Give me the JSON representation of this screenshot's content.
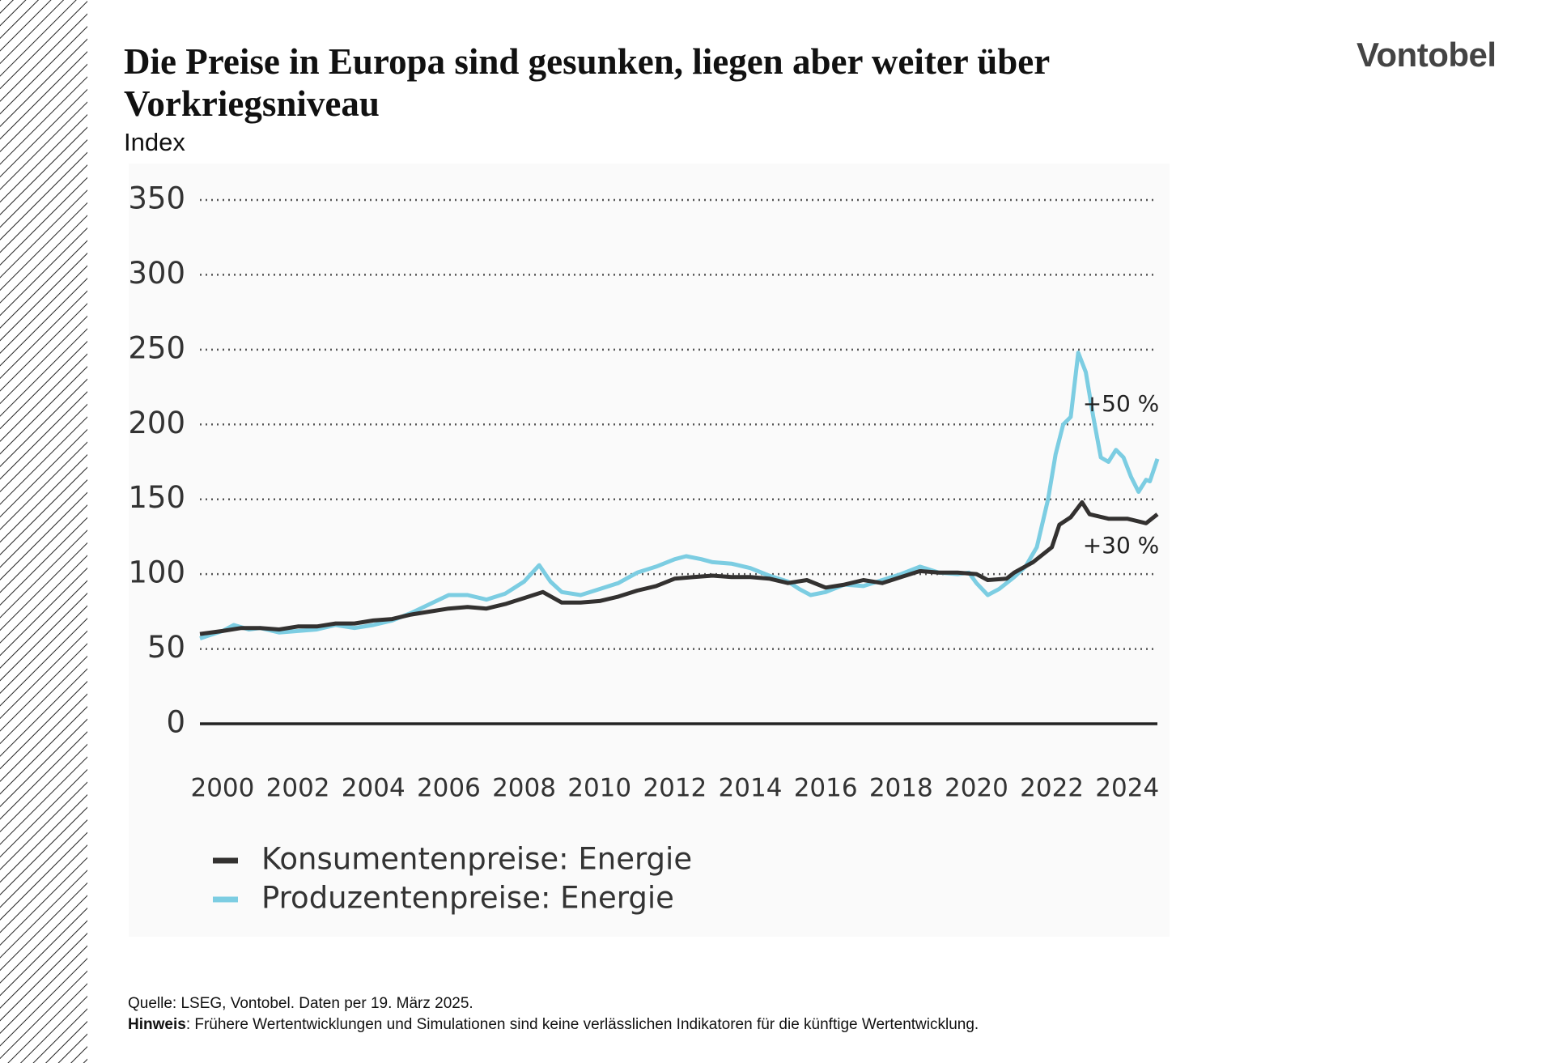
{
  "header": {
    "title": "Die Preise in Europa sind gesunken, liegen aber weiter über Vorkriegsniveau",
    "subtitle": "Index",
    "logo": "Vontobel"
  },
  "chart_data": {
    "type": "line",
    "xlim": [
      1999.4,
      2024.8
    ],
    "xticks": [
      2000,
      2002,
      2004,
      2006,
      2008,
      2010,
      2012,
      2014,
      2016,
      2018,
      2020,
      2022,
      2024
    ],
    "ylim": [
      0,
      350
    ],
    "yticks": [
      0,
      50,
      100,
      150,
      200,
      250,
      300,
      350
    ],
    "grid": true,
    "legend": "bottom-left",
    "annotations": [
      "+50 %",
      "+30 %"
    ],
    "series": [
      {
        "name": "Konsumentenpreise: Energie",
        "color": "#333130",
        "x": [
          1999.4,
          2000,
          2000.5,
          2001,
          2001.5,
          2002,
          2002.5,
          2003,
          2003.5,
          2004,
          2004.5,
          2005,
          2005.5,
          2006,
          2006.5,
          2007,
          2007.5,
          2008,
          2008.5,
          2009,
          2009.5,
          2010,
          2010.5,
          2011,
          2011.5,
          2012,
          2012.5,
          2013,
          2013.5,
          2014,
          2014.5,
          2015,
          2015.5,
          2016,
          2016.5,
          2017,
          2017.5,
          2018,
          2018.5,
          2019,
          2019.5,
          2020,
          2020.3,
          2020.8,
          2021,
          2021.5,
          2022,
          2022.2,
          2022.5,
          2022.8,
          2023,
          2023.5,
          2024,
          2024.5,
          2024.8
        ],
        "values": [
          60,
          62,
          64,
          64,
          63,
          65,
          65,
          67,
          67,
          69,
          70,
          73,
          75,
          77,
          78,
          77,
          80,
          84,
          88,
          81,
          81,
          82,
          85,
          89,
          92,
          97,
          98,
          99,
          98,
          98,
          97,
          94,
          96,
          91,
          93,
          96,
          94,
          98,
          102,
          101,
          101,
          100,
          96,
          97,
          101,
          108,
          118,
          133,
          138,
          148,
          140,
          137,
          137,
          134,
          140
        ]
      },
      {
        "name": "Produzentenpreise: Energie",
        "color": "#7ccde2",
        "x": [
          1999.4,
          2000,
          2000.3,
          2000.7,
          2001,
          2001.5,
          2002,
          2002.5,
          2003,
          2003.5,
          2004,
          2004.5,
          2005,
          2005.5,
          2006,
          2006.5,
          2007,
          2007.5,
          2008,
          2008.4,
          2008.7,
          2009,
          2009.5,
          2010,
          2010.5,
          2011,
          2011.5,
          2012,
          2012.3,
          2012.7,
          2013,
          2013.5,
          2014,
          2014.5,
          2015,
          2015.3,
          2015.6,
          2016,
          2016.5,
          2017,
          2017.5,
          2018,
          2018.5,
          2019,
          2019.5,
          2019.8,
          2020,
          2020.3,
          2020.6,
          2021,
          2021.3,
          2021.6,
          2021.9,
          2022.1,
          2022.3,
          2022.5,
          2022.7,
          2022.9,
          2023.1,
          2023.3,
          2023.5,
          2023.7,
          2023.9,
          2024.1,
          2024.3,
          2024.5,
          2024.6,
          2024.8
        ],
        "values": [
          57,
          62,
          66,
          63,
          64,
          61,
          62,
          63,
          66,
          64,
          66,
          69,
          74,
          80,
          86,
          86,
          83,
          87,
          95,
          106,
          95,
          88,
          86,
          90,
          94,
          101,
          105,
          110,
          112,
          110,
          108,
          107,
          104,
          99,
          95,
          90,
          86,
          88,
          93,
          92,
          96,
          100,
          105,
          101,
          100,
          101,
          94,
          86,
          90,
          98,
          105,
          118,
          150,
          180,
          200,
          205,
          248,
          235,
          205,
          178,
          175,
          183,
          178,
          165,
          155,
          163,
          162,
          177
        ]
      }
    ]
  },
  "footer": {
    "source": "Quelle: LSEG, Vontobel. Daten per 19. März 2025.",
    "note_label": "Hinweis",
    "note_text": ": Frühere Wertentwicklungen und Simulationen sind keine verlässlichen Indikatoren für die künftige Wertentwicklung."
  }
}
